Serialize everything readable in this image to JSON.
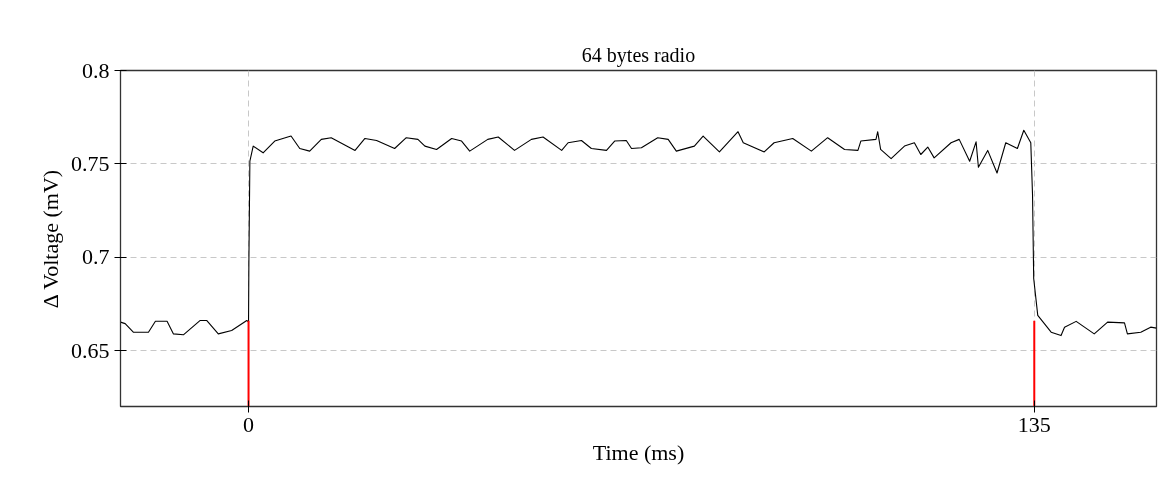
{
  "chart_data": {
    "type": "line",
    "title": "64 bytes radio",
    "xlabel": "Time (ms)",
    "ylabel": "Δ Voltage (mV)",
    "xlim": [
      -22,
      156
    ],
    "ylim": [
      0.62,
      0.8
    ],
    "xticks": [
      0,
      135
    ],
    "yticks": [
      0.65,
      0.7,
      0.75,
      0.8
    ],
    "grid": true,
    "marker": "none",
    "line_style": "solid",
    "series": [
      {
        "color": "#000000",
        "x": [
          -22,
          -21.2,
          -19.8,
          -17.2,
          -16.0,
          -14.0,
          -12.9,
          -11.2,
          -8.3,
          -7.2,
          -5.2,
          -2.9,
          -0.3,
          0,
          0.06,
          0.23,
          0.8,
          2.5,
          4.5,
          7.3,
          8.8,
          10.5,
          12.5,
          14.2,
          18.3,
          20.0,
          22.0,
          25.1,
          27.1,
          29.1,
          30.3,
          32.3,
          34.9,
          36.6,
          38.0,
          41.1,
          42.9,
          45.7,
          48.6,
          50.6,
          53.8,
          54.9,
          57.2,
          58.9,
          61.5,
          62.9,
          64.9,
          65.8,
          67.5,
          70.3,
          72.1,
          73.5,
          76.6,
          78.1,
          80.9,
          84.1,
          85.0,
          88.6,
          90.3,
          93.5,
          96.7,
          99.5,
          102.4,
          104.7,
          105.2,
          107.8,
          108.1,
          108.6,
          110.4,
          112.7,
          114.4,
          115.5,
          116.7,
          117.8,
          120.7,
          122.1,
          123.9,
          125.0,
          125.4,
          127.0,
          128.6,
          130.1,
          132.1,
          133.2,
          134.4,
          134.7,
          134.9,
          135.6,
          137.9,
          139.6,
          140.2,
          142.2,
          145.3,
          147.6,
          150.5,
          151.0,
          153.3,
          155.0,
          156.0
        ],
        "values": [
          0.6652,
          0.6644,
          0.6598,
          0.6598,
          0.6657,
          0.6657,
          0.6589,
          0.6584,
          0.6661,
          0.6661,
          0.6589,
          0.6607,
          0.6661,
          0.6652,
          0.6976,
          0.7515,
          0.7595,
          0.7559,
          0.7622,
          0.7649,
          0.7582,
          0.7568,
          0.7631,
          0.764,
          0.7572,
          0.7636,
          0.7625,
          0.7582,
          0.764,
          0.7631,
          0.7595,
          0.7577,
          0.7636,
          0.7622,
          0.7568,
          0.7631,
          0.7644,
          0.7572,
          0.7631,
          0.7644,
          0.7572,
          0.7613,
          0.7625,
          0.7582,
          0.7572,
          0.7622,
          0.7625,
          0.7582,
          0.7586,
          0.764,
          0.7631,
          0.7568,
          0.7595,
          0.7649,
          0.7564,
          0.7672,
          0.7613,
          0.7564,
          0.7613,
          0.7636,
          0.7568,
          0.764,
          0.7577,
          0.7572,
          0.7622,
          0.7631,
          0.7672,
          0.7577,
          0.7528,
          0.7595,
          0.7613,
          0.755,
          0.759,
          0.7532,
          0.7613,
          0.7631,
          0.7514,
          0.7618,
          0.7482,
          0.7572,
          0.7451,
          0.7613,
          0.7582,
          0.768,
          0.7613,
          0.7335,
          0.6886,
          0.6688,
          0.6598,
          0.658,
          0.6625,
          0.6656,
          0.6589,
          0.6652,
          0.6648,
          0.6589,
          0.6598,
          0.6625,
          0.662
        ]
      },
      {
        "color": "#ff0000",
        "x": [
          0,
          0
        ],
        "values": [
          0.62,
          0.666
        ]
      },
      {
        "color": "#ff0000",
        "x": [
          135,
          135
        ],
        "values": [
          0.62,
          0.666
        ]
      }
    ]
  }
}
